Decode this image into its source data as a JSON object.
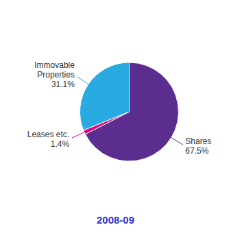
{
  "chart_data": {
    "type": "pie",
    "title": "2008-09",
    "categories": [
      "Shares",
      "Leases etc.",
      "Immovable\nProperties"
    ],
    "values": [
      67.5,
      1.4,
      31.1
    ],
    "value_labels": [
      "67.5%",
      "1.4%",
      "31.1%"
    ],
    "colors": [
      "#5b2d8e",
      "#e6007e",
      "#29abe2"
    ],
    "data_labels": true
  }
}
